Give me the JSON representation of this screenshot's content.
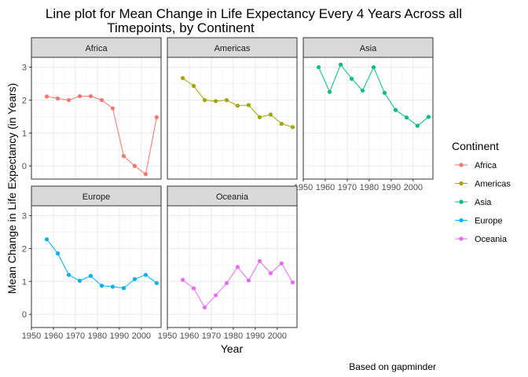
{
  "chart_data": {
    "type": "line",
    "title_line1": "Line plot for Mean Change in Life Expectancy Every 4 Years Across all",
    "title_line2": "Timepoints, by Continent",
    "xlabel": "Year",
    "ylabel": "Mean Change in Life Expectancy (in Years)",
    "caption": "Based on gapminder",
    "xlim": [
      1950,
      2009
    ],
    "ylim": [
      -0.4,
      3.3
    ],
    "x_ticks": [
      1950,
      1960,
      1970,
      1980,
      1990,
      2000
    ],
    "x_tick_labels": [
      "1950",
      "1960",
      "1970",
      "1980",
      "1990",
      "2000"
    ],
    "y_ticks": [
      0,
      1,
      2,
      3
    ],
    "y_tick_labels": [
      "0",
      "1",
      "2",
      "3"
    ],
    "grid": true,
    "legend": {
      "title": "Continent",
      "position": "right"
    },
    "x": [
      1957,
      1962,
      1967,
      1972,
      1977,
      1982,
      1987,
      1992,
      1997,
      2002,
      2007
    ],
    "series": [
      {
        "name": "Africa",
        "color": "#F8766D",
        "values": [
          2.11,
          2.05,
          2.0,
          2.12,
          2.12,
          2.0,
          1.75,
          0.3,
          0.0,
          -0.25,
          1.48
        ]
      },
      {
        "name": "Americas",
        "color": "#A3A500",
        "values": [
          2.67,
          2.43,
          2.0,
          1.97,
          2.0,
          1.83,
          1.85,
          1.48,
          1.56,
          1.28,
          1.18
        ]
      },
      {
        "name": "Asia",
        "color": "#00BF7D",
        "values": [
          3.0,
          2.25,
          3.08,
          2.65,
          2.29,
          3.0,
          2.22,
          1.7,
          1.47,
          1.22,
          1.49
        ]
      },
      {
        "name": "Europe",
        "color": "#00B0F6",
        "values": [
          2.28,
          1.85,
          1.2,
          1.02,
          1.17,
          0.87,
          0.84,
          0.8,
          1.07,
          1.2,
          0.95
        ]
      },
      {
        "name": "Oceania",
        "color": "#E76BF3",
        "values": [
          1.05,
          0.79,
          0.21,
          0.58,
          0.95,
          1.44,
          1.03,
          1.62,
          1.25,
          1.55,
          0.97
        ]
      }
    ]
  }
}
